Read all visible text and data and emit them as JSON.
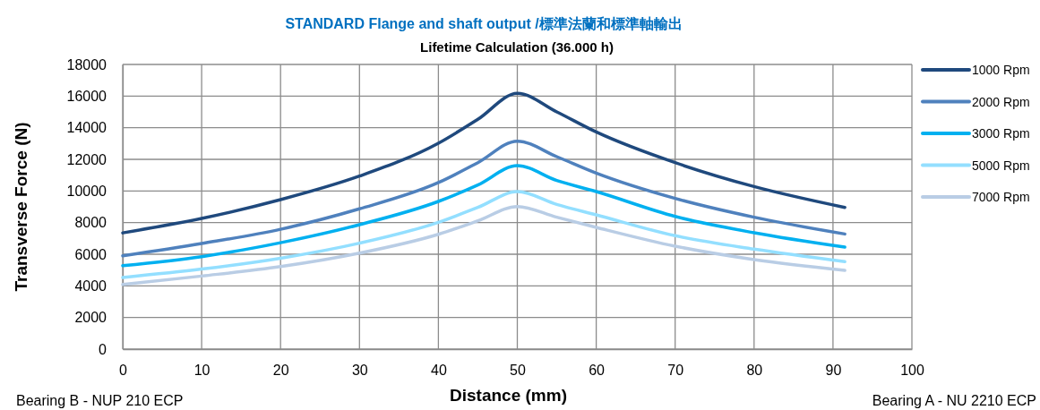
{
  "chart_data": {
    "type": "line",
    "title": "STANDARD Flange and shaft output /標準法蘭和標準軸輸出",
    "subtitle": "Lifetime Calculation (36.000 h)",
    "xlabel": "Distance (mm)",
    "ylabel": "Transverse Force (N)",
    "annotations": [
      "Bearing B - NUP 210 ECP",
      "Bearing A - NU 2210 ECP"
    ],
    "x": [
      0,
      10,
      20,
      30,
      40,
      45,
      50,
      55,
      60,
      70,
      80,
      91.5
    ],
    "series": [
      {
        "name": "1000 Rpm",
        "color": "#1f497d",
        "values": [
          7350,
          8260,
          9450,
          10940,
          13020,
          14530,
          16180,
          15000,
          13730,
          11790,
          10280,
          8960
        ]
      },
      {
        "name": "2000 Rpm",
        "color": "#4f81bd",
        "values": [
          5900,
          6680,
          7580,
          8870,
          10530,
          11790,
          13150,
          12170,
          11130,
          9530,
          8340,
          7280
        ]
      },
      {
        "name": "3000 Rpm",
        "color": "#00b0f0",
        "values": [
          5280,
          5850,
          6730,
          7870,
          9340,
          10380,
          11600,
          10660,
          9960,
          8390,
          7360,
          6450
        ]
      },
      {
        "name": "5000 Rpm",
        "color": "#93dfff",
        "values": [
          4530,
          5060,
          5750,
          6700,
          8020,
          8960,
          9960,
          9150,
          8490,
          7170,
          6320,
          5530
        ]
      },
      {
        "name": "7000 Rpm",
        "color": "#b9cde5",
        "values": [
          4090,
          4620,
          5220,
          6070,
          7260,
          8110,
          9020,
          8340,
          7700,
          6510,
          5660,
          4980
        ]
      }
    ],
    "xlim": [
      0,
      100
    ],
    "xticks": [
      0,
      10,
      20,
      30,
      40,
      50,
      60,
      70,
      80,
      90,
      100
    ],
    "ylim": [
      0,
      18000
    ],
    "yticks": [
      0,
      2000,
      4000,
      6000,
      8000,
      10000,
      12000,
      14000,
      16000,
      18000
    ],
    "grid": true,
    "legend": "right",
    "marker": "none",
    "line_style": "solid"
  }
}
